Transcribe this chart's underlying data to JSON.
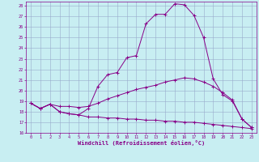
{
  "xlabel": "Windchill (Refroidissement éolien,°C)",
  "xlim": [
    -0.5,
    23.5
  ],
  "ylim": [
    16,
    28.4
  ],
  "xticks": [
    0,
    1,
    2,
    3,
    4,
    5,
    6,
    7,
    8,
    9,
    10,
    11,
    12,
    13,
    14,
    15,
    16,
    17,
    18,
    19,
    20,
    21,
    22,
    23
  ],
  "yticks": [
    16,
    17,
    18,
    19,
    20,
    21,
    22,
    23,
    24,
    25,
    26,
    27,
    28
  ],
  "bg_color": "#c8eef2",
  "line_color": "#880088",
  "grid_color": "#99aacc",
  "curves": [
    {
      "x": [
        0,
        1,
        2,
        3,
        4,
        5,
        6,
        7,
        8,
        9,
        10,
        11,
        12,
        13,
        14,
        15,
        16,
        17,
        18,
        19,
        20,
        21,
        22,
        23
      ],
      "y": [
        18.8,
        18.3,
        18.7,
        18.0,
        17.8,
        17.7,
        18.3,
        20.4,
        21.5,
        21.7,
        23.1,
        23.3,
        26.3,
        27.2,
        27.2,
        28.2,
        28.1,
        27.1,
        25.0,
        21.1,
        19.6,
        19.0,
        17.3,
        16.5
      ]
    },
    {
      "x": [
        0,
        1,
        2,
        3,
        4,
        5,
        6,
        7,
        8,
        9,
        10,
        11,
        12,
        13,
        14,
        15,
        16,
        17,
        18,
        19,
        20,
        21,
        22,
        23
      ],
      "y": [
        18.8,
        18.3,
        18.7,
        18.5,
        18.5,
        18.4,
        18.5,
        18.8,
        19.2,
        19.5,
        19.8,
        20.1,
        20.3,
        20.5,
        20.8,
        21.0,
        21.2,
        21.1,
        20.8,
        20.4,
        19.8,
        19.1,
        17.3,
        16.5
      ]
    },
    {
      "x": [
        0,
        1,
        2,
        3,
        4,
        5,
        6,
        7,
        8,
        9,
        10,
        11,
        12,
        13,
        14,
        15,
        16,
        17,
        18,
        19,
        20,
        21,
        22,
        23
      ],
      "y": [
        18.8,
        18.3,
        18.7,
        18.0,
        17.8,
        17.7,
        17.5,
        17.5,
        17.4,
        17.4,
        17.3,
        17.3,
        17.2,
        17.2,
        17.1,
        17.1,
        17.0,
        17.0,
        16.9,
        16.8,
        16.7,
        16.6,
        16.5,
        16.4
      ]
    }
  ]
}
